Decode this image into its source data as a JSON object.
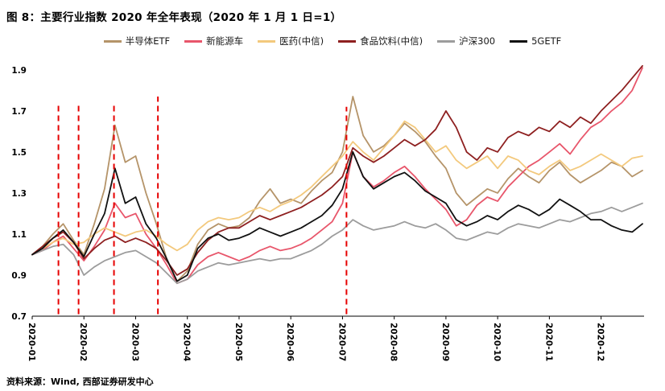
{
  "header": {
    "title": "图 8：主要行业指数 2020 年全年表现（2020 年 1 月 1 日=1）"
  },
  "footer": {
    "source": "资料来源：Wind, 西部证券研发中心"
  },
  "chart_data": {
    "type": "line",
    "title": "主要行业指数 2020 年全年表现（2020 年 1 月 1 日=1）",
    "xlabel": "",
    "ylabel": "",
    "grid": false,
    "legend_position": "top",
    "ylim": [
      0.7,
      1.97
    ],
    "y_tick_labels": [
      "0.7",
      "0.9",
      "1.1",
      "1.3",
      "1.5",
      "1.7",
      "1.9"
    ],
    "x_tick_labels": [
      "2020-01",
      "2020-02",
      "2020-03",
      "2020-04",
      "2020-05",
      "2020-06",
      "2020-07",
      "2020-08",
      "2020-09",
      "2020-10",
      "2020-11",
      "2020-12"
    ],
    "series": [
      {
        "name": "半导体ETF",
        "color": "#b59469",
        "values": [
          1.0,
          1.04,
          1.1,
          1.15,
          1.07,
          1.0,
          1.15,
          1.32,
          1.63,
          1.45,
          1.48,
          1.3,
          1.15,
          0.98,
          0.87,
          0.92,
          1.05,
          1.12,
          1.15,
          1.13,
          1.14,
          1.18,
          1.26,
          1.32,
          1.25,
          1.27,
          1.25,
          1.31,
          1.36,
          1.4,
          1.5,
          1.77,
          1.58,
          1.5,
          1.53,
          1.58,
          1.64,
          1.6,
          1.55,
          1.48,
          1.42,
          1.3,
          1.24,
          1.28,
          1.32,
          1.3,
          1.37,
          1.42,
          1.38,
          1.35,
          1.41,
          1.45,
          1.39,
          1.35,
          1.38,
          1.41,
          1.45,
          1.43,
          1.38,
          1.41
        ]
      },
      {
        "name": "新能源车",
        "color": "#e8566b",
        "values": [
          1.0,
          1.02,
          1.06,
          1.09,
          1.03,
          0.97,
          1.04,
          1.12,
          1.25,
          1.18,
          1.2,
          1.1,
          1.03,
          0.95,
          0.86,
          0.88,
          0.95,
          0.99,
          1.01,
          0.99,
          0.97,
          0.99,
          1.02,
          1.04,
          1.02,
          1.03,
          1.05,
          1.08,
          1.12,
          1.16,
          1.25,
          1.5,
          1.38,
          1.33,
          1.36,
          1.4,
          1.43,
          1.38,
          1.32,
          1.27,
          1.22,
          1.14,
          1.17,
          1.24,
          1.28,
          1.26,
          1.33,
          1.38,
          1.43,
          1.46,
          1.5,
          1.54,
          1.49,
          1.56,
          1.62,
          1.65,
          1.7,
          1.74,
          1.8,
          1.91
        ]
      },
      {
        "name": "医药(中信)",
        "color": "#f3c97d",
        "values": [
          1.0,
          1.03,
          1.06,
          1.08,
          1.05,
          1.06,
          1.1,
          1.13,
          1.11,
          1.09,
          1.11,
          1.12,
          1.09,
          1.05,
          1.02,
          1.05,
          1.12,
          1.16,
          1.18,
          1.17,
          1.18,
          1.21,
          1.23,
          1.21,
          1.24,
          1.26,
          1.29,
          1.33,
          1.38,
          1.43,
          1.48,
          1.55,
          1.5,
          1.46,
          1.52,
          1.58,
          1.65,
          1.62,
          1.56,
          1.5,
          1.53,
          1.46,
          1.42,
          1.45,
          1.48,
          1.42,
          1.48,
          1.46,
          1.41,
          1.39,
          1.43,
          1.46,
          1.41,
          1.43,
          1.46,
          1.49,
          1.46,
          1.43,
          1.47,
          1.48
        ]
      },
      {
        "name": "食品饮料(中信)",
        "color": "#8e2020",
        "values": [
          1.0,
          1.04,
          1.08,
          1.11,
          1.06,
          0.98,
          1.03,
          1.07,
          1.09,
          1.06,
          1.08,
          1.06,
          1.03,
          0.97,
          0.9,
          0.93,
          1.01,
          1.07,
          1.11,
          1.13,
          1.13,
          1.16,
          1.19,
          1.17,
          1.19,
          1.21,
          1.23,
          1.26,
          1.29,
          1.33,
          1.38,
          1.52,
          1.48,
          1.45,
          1.48,
          1.52,
          1.56,
          1.53,
          1.56,
          1.61,
          1.7,
          1.62,
          1.5,
          1.46,
          1.52,
          1.5,
          1.57,
          1.6,
          1.58,
          1.62,
          1.6,
          1.65,
          1.62,
          1.67,
          1.64,
          1.7,
          1.75,
          1.8,
          1.86,
          1.92
        ]
      },
      {
        "name": "沪深300",
        "color": "#9c9c9c",
        "values": [
          1.0,
          1.02,
          1.04,
          1.05,
          1.0,
          0.9,
          0.94,
          0.97,
          0.99,
          1.01,
          1.02,
          0.99,
          0.96,
          0.91,
          0.86,
          0.88,
          0.92,
          0.94,
          0.96,
          0.95,
          0.96,
          0.97,
          0.98,
          0.97,
          0.98,
          0.98,
          1.0,
          1.02,
          1.05,
          1.09,
          1.12,
          1.17,
          1.14,
          1.12,
          1.13,
          1.14,
          1.16,
          1.14,
          1.13,
          1.15,
          1.12,
          1.08,
          1.07,
          1.09,
          1.11,
          1.1,
          1.13,
          1.15,
          1.14,
          1.13,
          1.15,
          1.17,
          1.16,
          1.18,
          1.2,
          1.21,
          1.23,
          1.21,
          1.23,
          1.25
        ]
      },
      {
        "name": "5GETF",
        "color": "#111111",
        "values": [
          1.0,
          1.03,
          1.08,
          1.12,
          1.06,
          0.99,
          1.1,
          1.2,
          1.42,
          1.25,
          1.28,
          1.15,
          1.08,
          0.98,
          0.87,
          0.9,
          1.03,
          1.08,
          1.1,
          1.07,
          1.08,
          1.1,
          1.13,
          1.11,
          1.09,
          1.11,
          1.13,
          1.16,
          1.19,
          1.24,
          1.32,
          1.5,
          1.38,
          1.32,
          1.35,
          1.38,
          1.4,
          1.36,
          1.31,
          1.28,
          1.25,
          1.17,
          1.14,
          1.16,
          1.19,
          1.17,
          1.21,
          1.24,
          1.22,
          1.19,
          1.22,
          1.27,
          1.24,
          1.21,
          1.17,
          1.17,
          1.14,
          1.12,
          1.11,
          1.15
        ]
      }
    ],
    "event_lines": {
      "color": "#e60000",
      "style": "dashed",
      "bottom": 0.71,
      "items": [
        {
          "x": 0.043,
          "top": 1.74
        },
        {
          "x": 0.076,
          "top": 1.74
        },
        {
          "x": 0.134,
          "top": 1.74
        },
        {
          "x": 0.206,
          "top": 1.77
        },
        {
          "x": 0.515,
          "top": 1.72
        }
      ]
    }
  }
}
